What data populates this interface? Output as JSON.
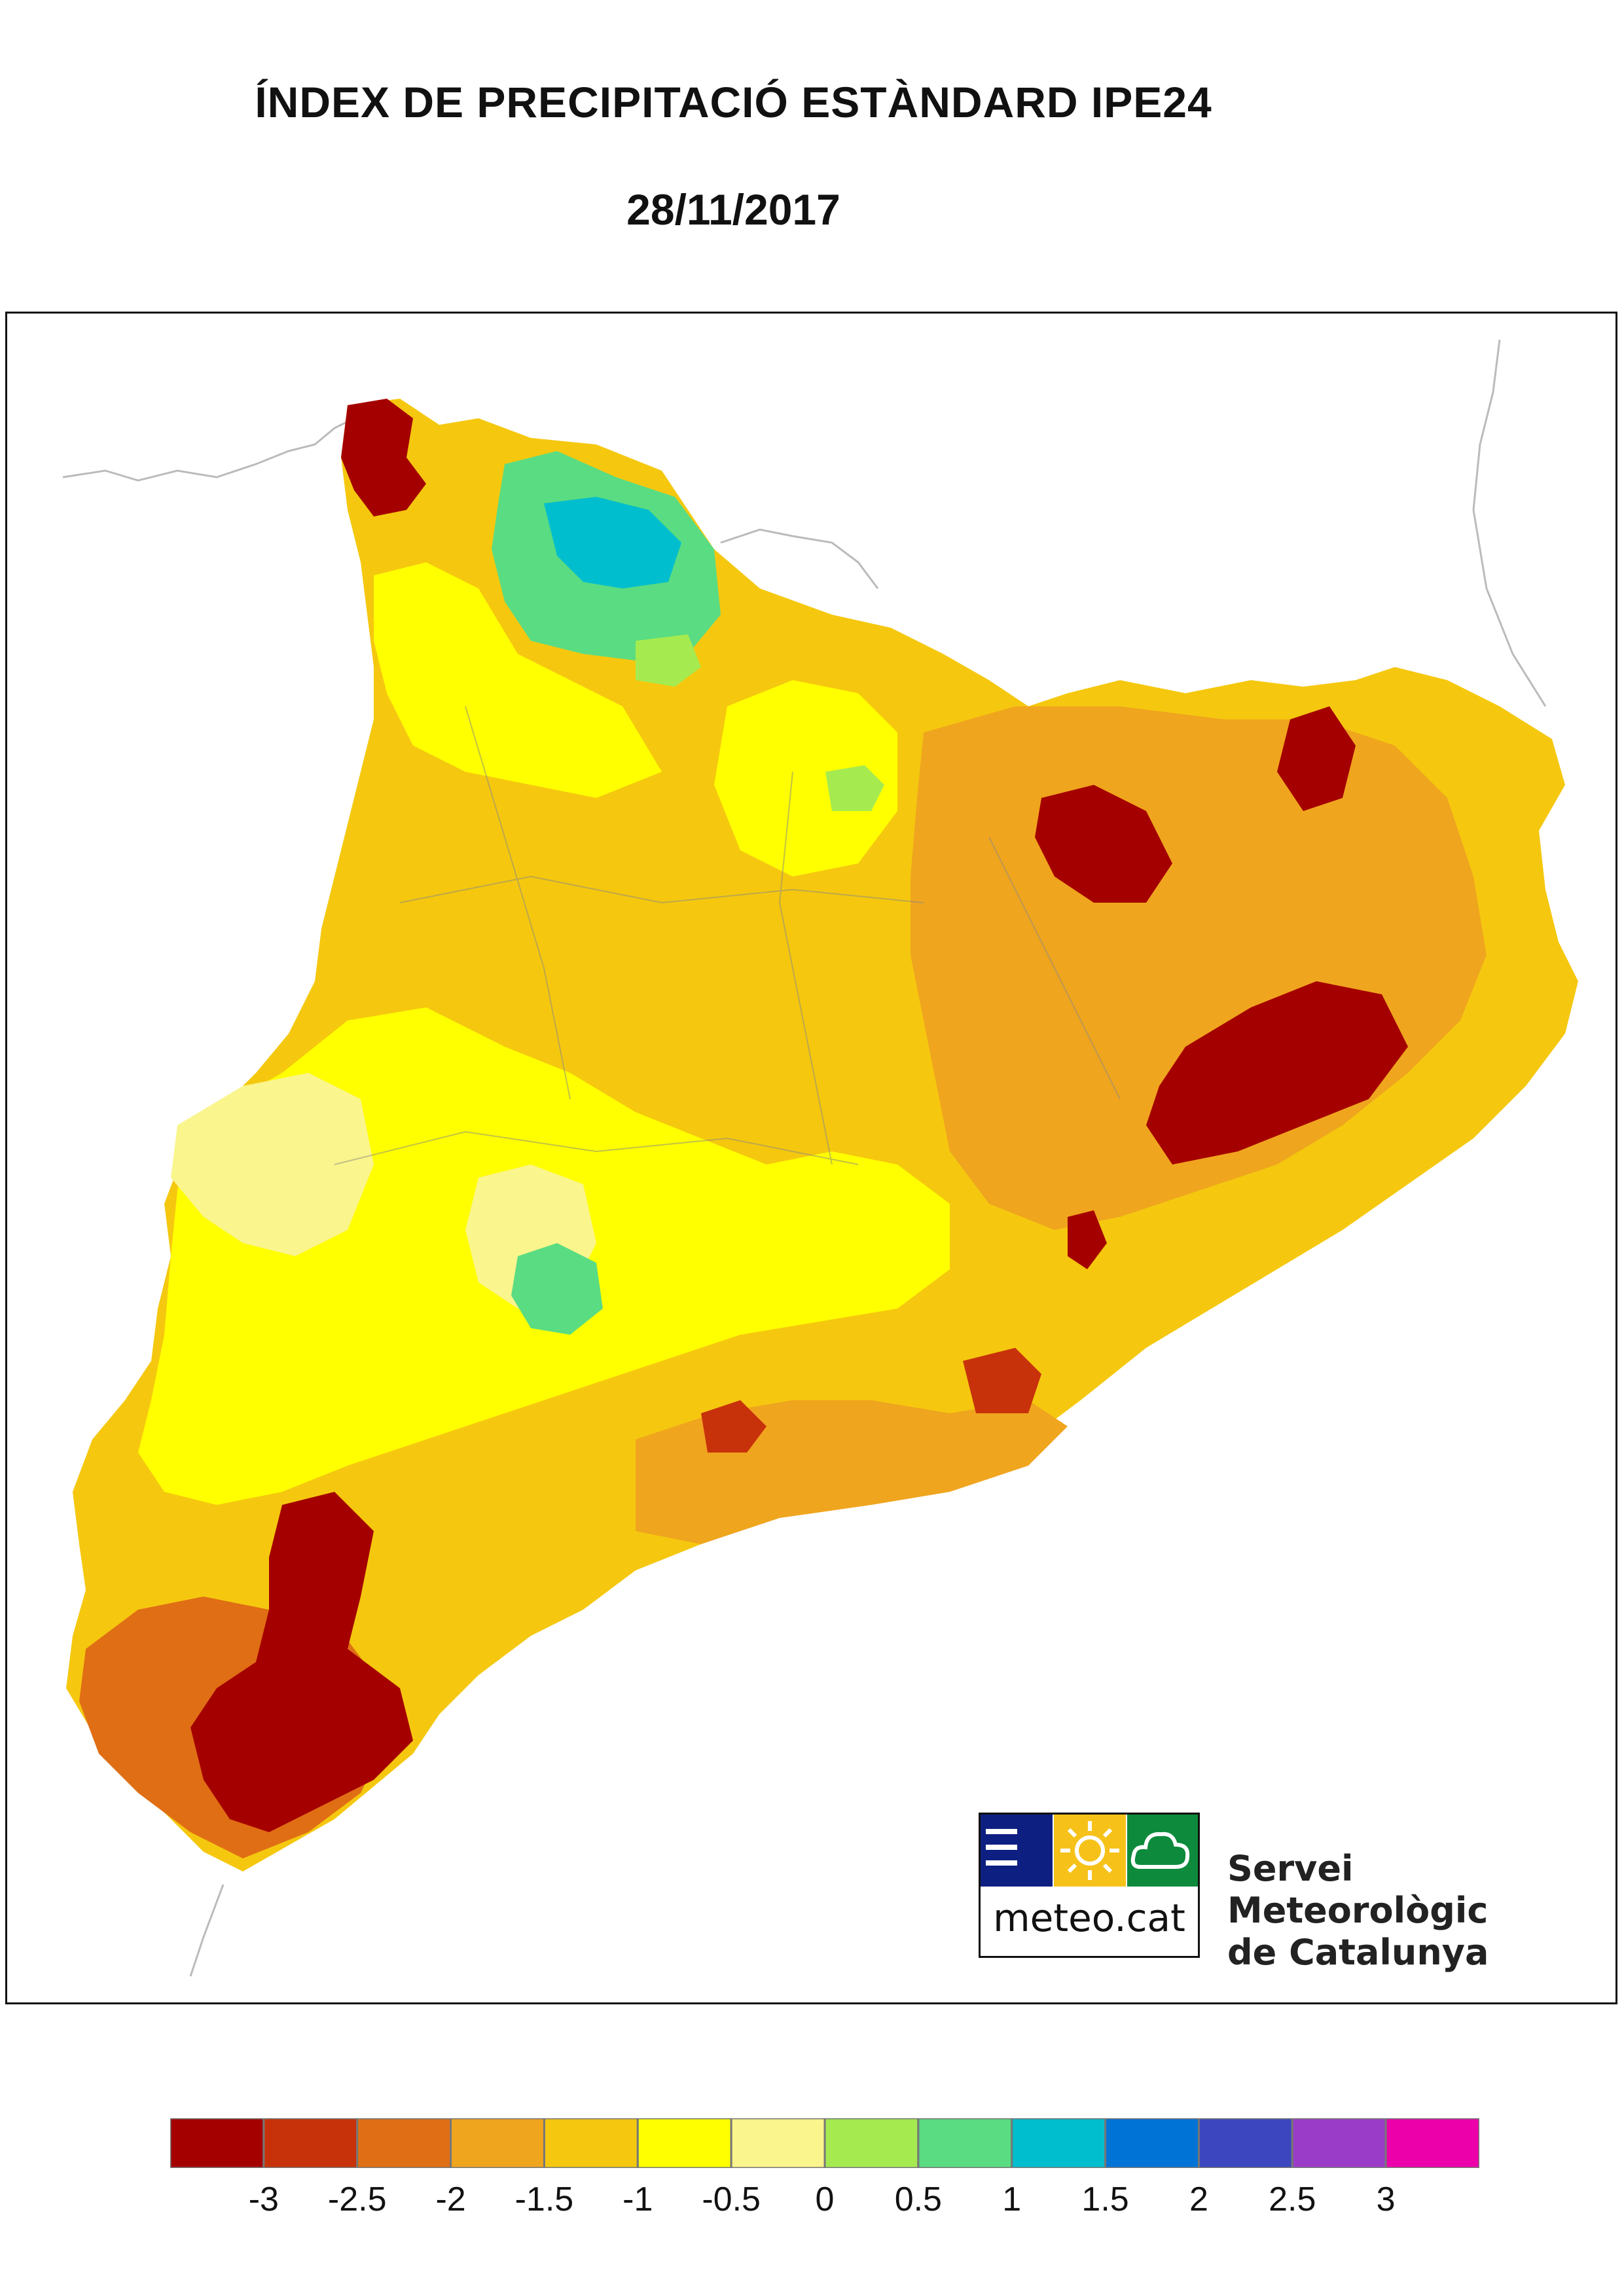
{
  "title": "ÍNDEX DE PRECIPITACIÓ ESTÀNDARD IPE24",
  "date": "28/11/2017",
  "logo": {
    "text": "meteo.cat",
    "org_line1": "Servei Meteorològic",
    "org_line2": "de Catalunya",
    "tile_colors": [
      "#0e1f82",
      "#f6c21a",
      "#0e8a3c"
    ],
    "icons": [
      "bars-icon",
      "sun-icon",
      "cloud-icon"
    ]
  },
  "legend": {
    "colors": [
      "#a50000",
      "#c8320a",
      "#e06e14",
      "#f0a51e",
      "#f5c80f",
      "#ffff00",
      "#faf58c",
      "#a5eb50",
      "#5adc82",
      "#00bece",
      "#0073d7",
      "#3c46be",
      "#9b3cc8",
      "#eb00aa"
    ],
    "tick_labels": [
      "-3",
      "-2.5",
      "-2",
      "-1.5",
      "-1",
      "-0.5",
      "0",
      "0.5",
      "1",
      "1.5",
      "2",
      "2.5",
      "3"
    ]
  },
  "map": {
    "regions": [
      {
        "name": "catalonia-base",
        "color": "#f5c80f"
      },
      {
        "name": "pyrenees-yellow",
        "color": "#ffff00"
      },
      {
        "name": "aran-green",
        "color": "#5adc82"
      },
      {
        "name": "aran-cyan",
        "color": "#00bece"
      },
      {
        "name": "northwest-darkred",
        "color": "#a50000"
      },
      {
        "name": "girona-darkred",
        "color": "#a50000"
      },
      {
        "name": "ebro-darkred",
        "color": "#a50000"
      },
      {
        "name": "west-lightyellow",
        "color": "#faf58c"
      }
    ]
  }
}
